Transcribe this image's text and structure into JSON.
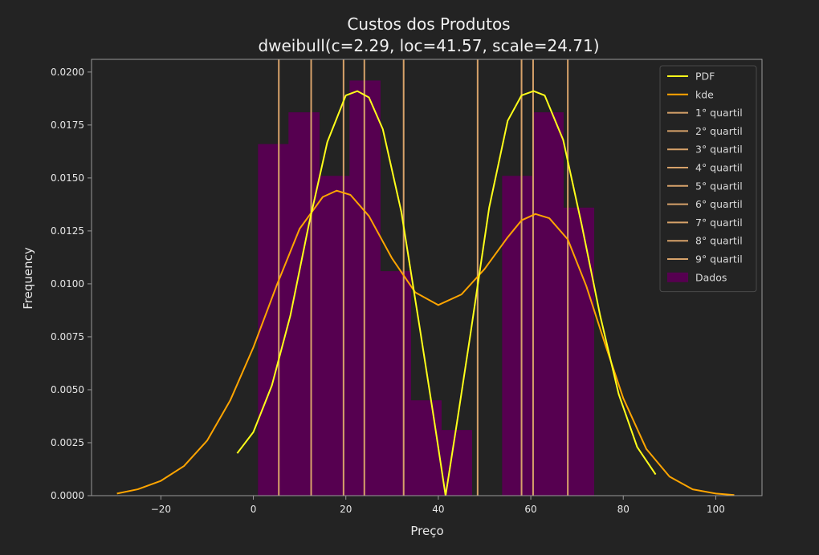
{
  "chart_data": {
    "type": "bar",
    "title": "Custos dos Produtos",
    "subtitle": "dweibull(c=2.29, loc=41.57, scale=24.71)",
    "xlabel": "Preço",
    "ylabel": "Frequency",
    "xlim": [
      -35,
      110
    ],
    "ylim": [
      0,
      0.0206
    ],
    "x_ticks": [
      -20,
      0,
      20,
      40,
      60,
      80,
      100
    ],
    "y_ticks": [
      0.0,
      0.0025,
      0.005,
      0.0075,
      0.01,
      0.0125,
      0.015,
      0.0175,
      0.02
    ],
    "x_tick_labels": [
      "−20",
      "0",
      "20",
      "40",
      "60",
      "80",
      "100"
    ],
    "y_tick_labels": [
      "0.0000",
      "0.0025",
      "0.0050",
      "0.0075",
      "0.0100",
      "0.0125",
      "0.0150",
      "0.0175",
      "0.0200"
    ],
    "grid": false,
    "legend_position": "top-right",
    "histogram": {
      "name": "Dados",
      "color": "#560050",
      "bin_edges": [
        1.0,
        7.6,
        14.2,
        20.8,
        27.4,
        34.0,
        40.6,
        47.2,
        53.8,
        60.4,
        67.0,
        73.6
      ],
      "values": [
        0.0166,
        0.0181,
        0.0151,
        0.0196,
        0.0106,
        0.0045,
        0.0031,
        0.0,
        0.0151,
        0.0181,
        0.0136,
        0.0166
      ]
    },
    "series": [
      {
        "name": "PDF",
        "color": "#ffff1a",
        "type": "line",
        "x": [
          -3.5,
          0,
          4,
          8,
          12,
          16,
          20,
          22.5,
          25,
          28,
          32,
          36,
          39,
          41.57,
          44,
          47,
          51,
          55,
          58,
          60.6,
          63,
          67,
          71,
          75,
          79,
          83,
          87
        ],
        "y": [
          0.002,
          0.003,
          0.0052,
          0.0085,
          0.0128,
          0.0167,
          0.0189,
          0.0191,
          0.0188,
          0.0173,
          0.0134,
          0.0079,
          0.0037,
          0.0,
          0.0034,
          0.0077,
          0.0136,
          0.0177,
          0.0189,
          0.0191,
          0.0189,
          0.0168,
          0.0128,
          0.0085,
          0.0048,
          0.0023,
          0.001
        ]
      },
      {
        "name": "kde",
        "color": "#ffa500",
        "type": "line",
        "x": [
          -29.5,
          -25,
          -20,
          -15,
          -10,
          -5,
          0,
          5,
          10,
          15,
          18,
          21,
          25,
          30,
          35,
          40,
          45,
          50,
          55,
          58,
          61,
          64,
          68,
          72,
          76,
          80,
          85,
          90,
          95,
          100,
          104
        ],
        "y": [
          0.0001,
          0.0003,
          0.0007,
          0.0014,
          0.0026,
          0.0045,
          0.007,
          0.0099,
          0.0126,
          0.0141,
          0.0144,
          0.0142,
          0.0132,
          0.0112,
          0.0096,
          0.009,
          0.0095,
          0.0107,
          0.0122,
          0.013,
          0.0133,
          0.0131,
          0.0121,
          0.0099,
          0.0072,
          0.0046,
          0.0022,
          0.0009,
          0.0003,
          0.0001,
          3e-05
        ]
      }
    ],
    "quartiles": {
      "color": "#d7a26a",
      "names": [
        "1° quartil",
        "2° quartil",
        "3° quartil",
        "4° quartil",
        "5° quartil",
        "6° quartil",
        "7° quartil",
        "8° quartil",
        "9° quartil"
      ],
      "x": [
        5.5,
        12.5,
        19.5,
        24.0,
        32.5,
        48.5,
        58.0,
        60.5,
        68.0
      ]
    },
    "legend": [
      "PDF",
      "kde",
      "1° quartil",
      "2° quartil",
      "3° quartil",
      "4° quartil",
      "5° quartil",
      "6° quartil",
      "7° quartil",
      "8° quartil",
      "9° quartil",
      "Dados"
    ]
  }
}
